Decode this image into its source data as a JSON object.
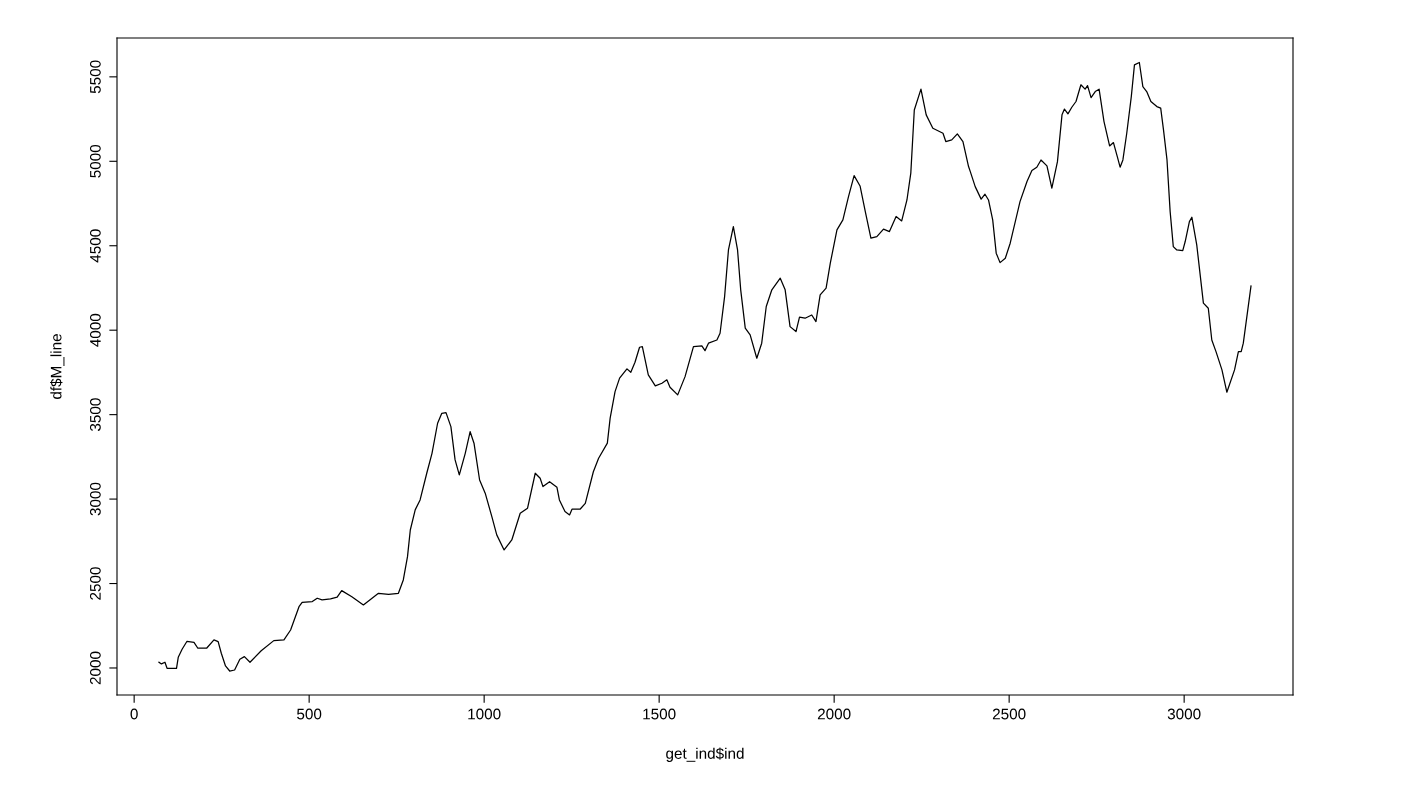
{
  "chart_data": {
    "type": "line",
    "xlabel": "get_ind$ind",
    "ylabel": "df$M_line",
    "xlim": [
      -49,
      3311
    ],
    "ylim": [
      1840,
      5730
    ],
    "xticks": [
      0,
      500,
      1000,
      1500,
      2000,
      2500,
      3000
    ],
    "yticks": [
      2000,
      2500,
      3000,
      3500,
      4000,
      4500,
      5000,
      5500
    ],
    "grid": false,
    "line_style": "solid",
    "x": [
      71,
      78,
      88,
      94,
      121,
      126,
      137,
      151,
      171,
      182,
      207,
      228,
      240,
      249,
      261,
      273,
      287,
      302,
      315,
      331,
      363,
      399,
      428,
      447,
      471,
      480,
      509,
      523,
      537,
      561,
      580,
      593,
      622,
      655,
      698,
      727,
      755,
      769,
      781,
      789,
      803,
      817,
      836,
      851,
      867,
      879,
      891,
      905,
      917,
      929,
      946,
      960,
      971,
      987,
      1003,
      1022,
      1036,
      1057,
      1079,
      1103,
      1124,
      1146,
      1160,
      1168,
      1187,
      1208,
      1215,
      1231,
      1244,
      1251,
      1274,
      1289,
      1312,
      1327,
      1352,
      1360,
      1374,
      1387,
      1408,
      1419,
      1431,
      1444,
      1452,
      1469,
      1489,
      1508,
      1522,
      1531,
      1553,
      1574,
      1598,
      1622,
      1631,
      1641,
      1665,
      1674,
      1687,
      1698,
      1712,
      1724,
      1733,
      1746,
      1760,
      1779,
      1793,
      1806,
      1822,
      1846,
      1860,
      1874,
      1891,
      1901,
      1917,
      1936,
      1948,
      1960,
      1977,
      1989,
      2008,
      2025,
      2041,
      2057,
      2074,
      2089,
      2105,
      2122,
      2141,
      2158,
      2177,
      2193,
      2208,
      2219,
      2229,
      2248,
      2263,
      2282,
      2311,
      2319,
      2336,
      2352,
      2368,
      2384,
      2389,
      2403,
      2420,
      2431,
      2441,
      2453,
      2463,
      2474,
      2489,
      2503,
      2531,
      2551,
      2565,
      2579,
      2591,
      2608,
      2622,
      2638,
      2651,
      2658,
      2668,
      2679,
      2691,
      2705,
      2717,
      2724,
      2734,
      2746,
      2757,
      2771,
      2787,
      2798,
      2809,
      2817,
      2825,
      2836,
      2849,
      2858,
      2872,
      2882,
      2893,
      2905,
      2922,
      2933,
      2941,
      2951,
      2960,
      2969,
      2979,
      2996,
      3003,
      3015,
      3022,
      3036,
      3055,
      3069,
      3079,
      3091,
      3108,
      3122,
      3144,
      3155,
      3163,
      3169,
      3191
    ],
    "series": [
      {
        "color": "#000000",
        "values": [
          2034,
          2024,
          2034,
          1998,
          1998,
          2063,
          2111,
          2158,
          2152,
          2117,
          2117,
          2166,
          2156,
          2087,
          2012,
          1982,
          1988,
          2052,
          2067,
          2034,
          2102,
          2162,
          2166,
          2225,
          2363,
          2389,
          2393,
          2413,
          2403,
          2409,
          2419,
          2458,
          2422,
          2373,
          2442,
          2436,
          2442,
          2521,
          2659,
          2817,
          2936,
          2995,
          3153,
          3271,
          3449,
          3508,
          3512,
          3429,
          3232,
          3143,
          3271,
          3399,
          3331,
          3113,
          3035,
          2896,
          2788,
          2699,
          2758,
          2916,
          2946,
          3153,
          3123,
          3074,
          3103,
          3070,
          2995,
          2926,
          2906,
          2940,
          2940,
          2975,
          3162,
          3242,
          3331,
          3479,
          3636,
          3716,
          3771,
          3751,
          3810,
          3899,
          3903,
          3735,
          3670,
          3686,
          3706,
          3662,
          3617,
          3725,
          3903,
          3907,
          3879,
          3923,
          3942,
          3982,
          4199,
          4475,
          4613,
          4475,
          4239,
          4012,
          3972,
          3834,
          3923,
          4140,
          4239,
          4308,
          4239,
          4021,
          3992,
          4077,
          4071,
          4090,
          4051,
          4209,
          4249,
          4397,
          4594,
          4653,
          4791,
          4915,
          4854,
          4702,
          4545,
          4554,
          4598,
          4584,
          4673,
          4647,
          4771,
          4930,
          5304,
          5427,
          5275,
          5196,
          5166,
          5117,
          5127,
          5162,
          5117,
          4969,
          4939,
          4850,
          4776,
          4805,
          4771,
          4653,
          4456,
          4400,
          4426,
          4515,
          4761,
          4880,
          4945,
          4965,
          5008,
          4973,
          4841,
          4998,
          5275,
          5309,
          5281,
          5320,
          5354,
          5453,
          5427,
          5448,
          5377,
          5413,
          5427,
          5235,
          5091,
          5111,
          5028,
          4965,
          5008,
          5166,
          5383,
          5571,
          5585,
          5442,
          5413,
          5354,
          5324,
          5315,
          5186,
          5008,
          4702,
          4495,
          4475,
          4471,
          4525,
          4643,
          4669,
          4505,
          4160,
          4130,
          3942,
          3873,
          3765,
          3633,
          3765,
          3873,
          3873,
          3923,
          4262
        ]
      }
    ]
  }
}
